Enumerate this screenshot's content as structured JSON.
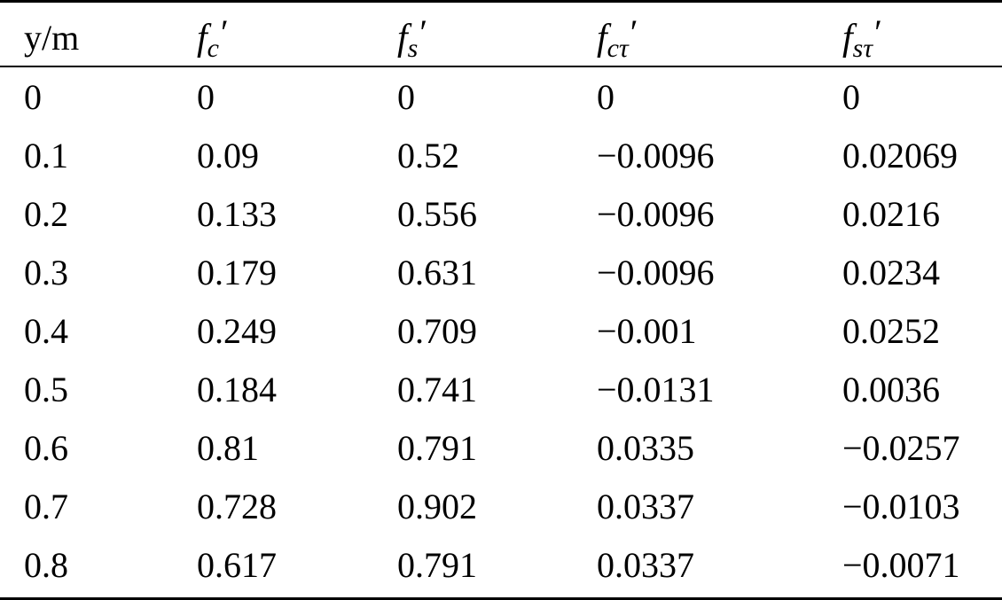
{
  "table": {
    "headers": [
      {
        "text": "y/m"
      },
      {
        "base": "f",
        "sub": "c",
        "sup": "′"
      },
      {
        "base": "f",
        "sub": "s",
        "sup": "′"
      },
      {
        "base": "f",
        "sub": "cτ",
        "sup": "′"
      },
      {
        "base": "f",
        "sub": "sτ",
        "sup": "′"
      }
    ],
    "rows": [
      [
        "0",
        "0",
        "0",
        "0",
        "0"
      ],
      [
        "0.1",
        "0.09",
        "0.52",
        "−0.0096",
        "0.02069"
      ],
      [
        "0.2",
        "0.133",
        "0.556",
        "−0.0096",
        "0.0216"
      ],
      [
        "0.3",
        "0.179",
        "0.631",
        "−0.0096",
        "0.0234"
      ],
      [
        "0.4",
        "0.249",
        "0.709",
        "−0.001",
        "0.0252"
      ],
      [
        "0.5",
        "0.184",
        "0.741",
        "−0.0131",
        "0.0036"
      ],
      [
        "0.6",
        "0.81",
        "0.791",
        "0.0335",
        "−0.0257"
      ],
      [
        "0.7",
        "0.728",
        "0.902",
        "0.0337",
        "−0.0103"
      ],
      [
        "0.8",
        "0.617",
        "0.791",
        "0.0337",
        "−0.0071"
      ]
    ]
  }
}
